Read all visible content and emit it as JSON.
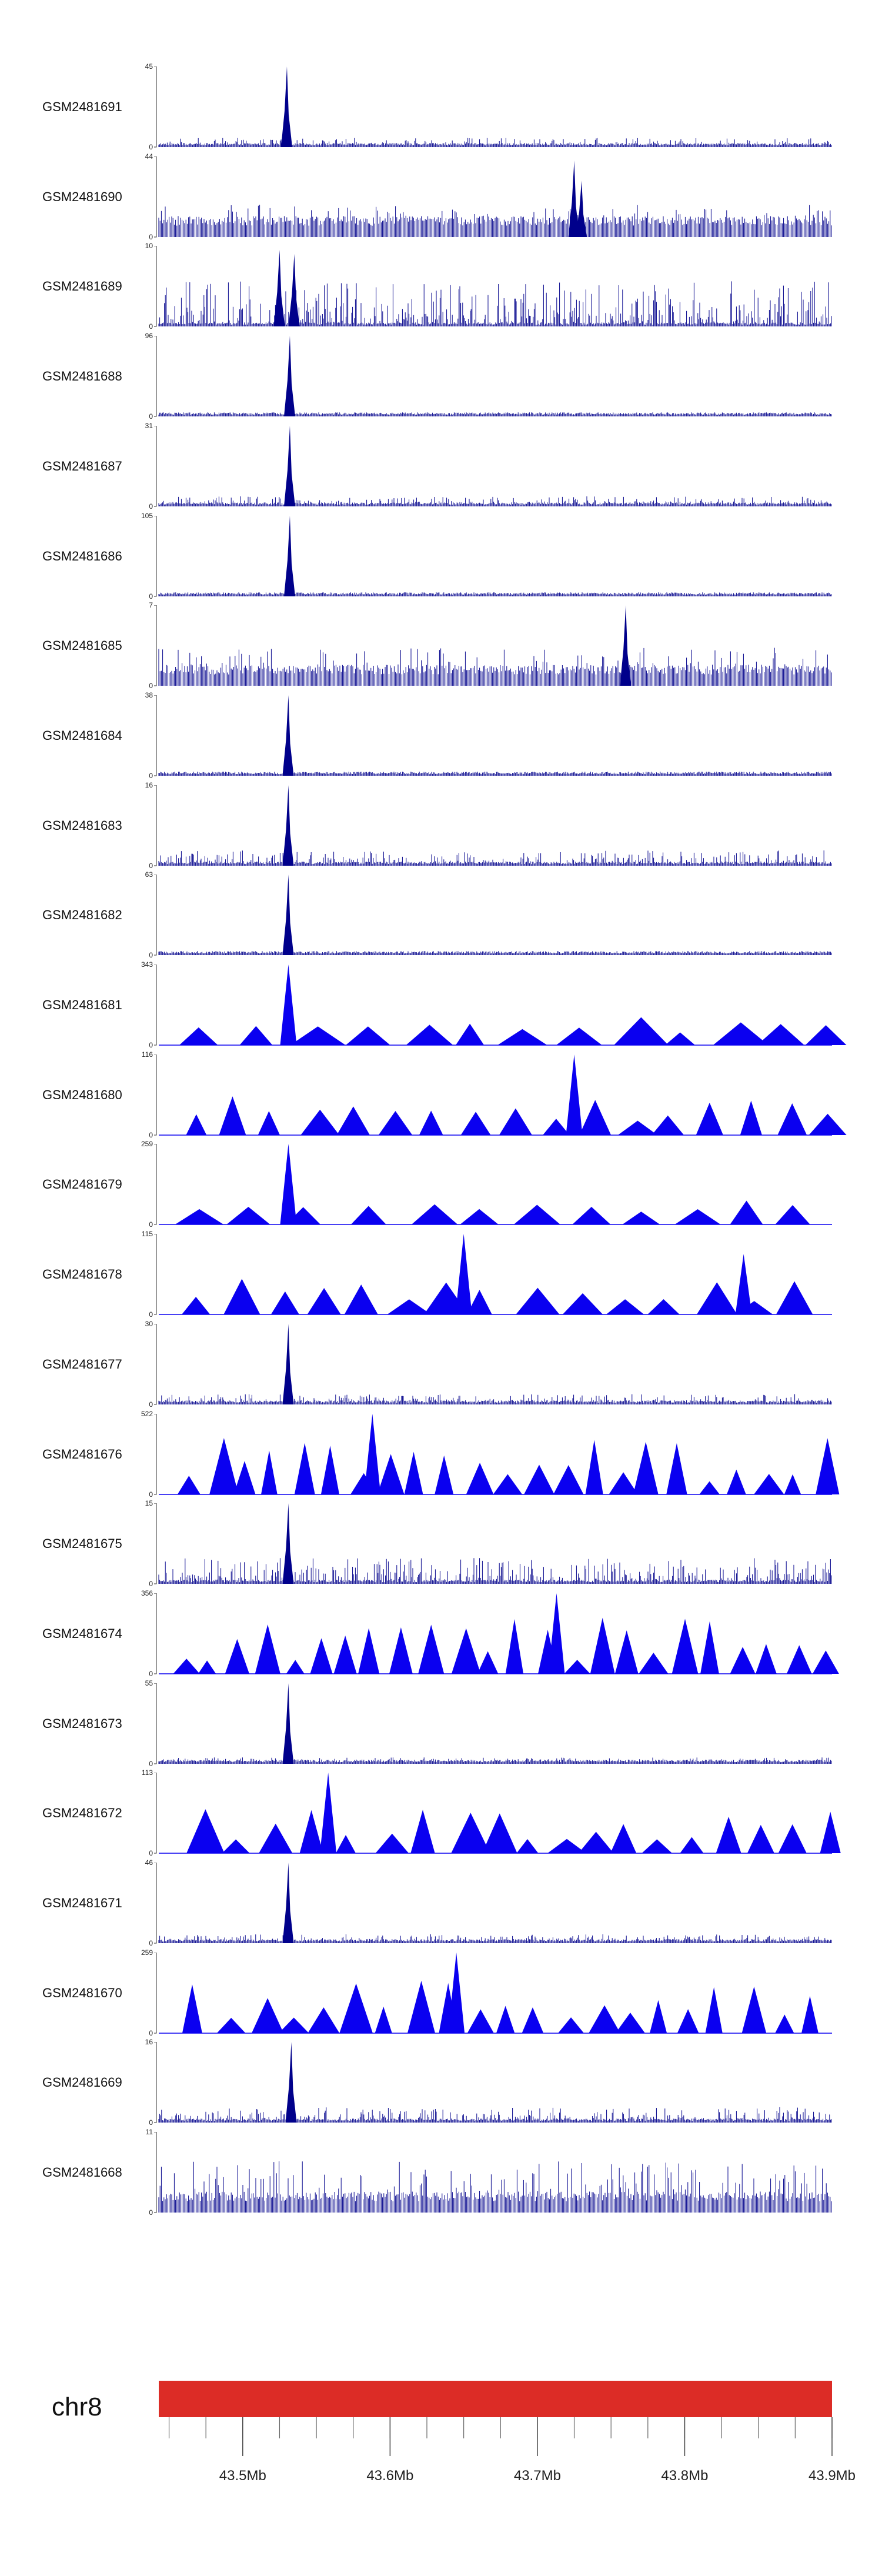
{
  "chart_data": {
    "type": "area",
    "title": "",
    "chromosome": "chr8",
    "xlim": [
      43.443,
      43.9
    ],
    "x_ticks": [
      43.5,
      43.6,
      43.7,
      43.8,
      43.9
    ],
    "x_tick_labels": [
      "43.5Mb",
      "43.6Mb",
      "43.7Mb",
      "43.8Mb",
      "43.9Mb"
    ],
    "series": [
      {
        "name": "GSM2481691",
        "max": 45,
        "style": "noise",
        "level": 0.07,
        "peaks": [
          [
            43.53,
            1.0
          ]
        ]
      },
      {
        "name": "GSM2481690",
        "max": 44,
        "style": "sparse",
        "level": 0.25,
        "peaks": [
          [
            43.725,
            0.95
          ],
          [
            43.73,
            0.7
          ]
        ]
      },
      {
        "name": "GSM2481689",
        "max": 10,
        "style": "noise",
        "level": 0.35,
        "peaks": [
          [
            43.525,
            0.95
          ],
          [
            43.535,
            0.9
          ]
        ]
      },
      {
        "name": "GSM2481688",
        "max": 96,
        "style": "peak",
        "level": 0.02,
        "peaks": [
          [
            43.532,
            1.0
          ]
        ]
      },
      {
        "name": "GSM2481687",
        "max": 31,
        "style": "peak",
        "level": 0.08,
        "peaks": [
          [
            43.532,
            1.0
          ]
        ]
      },
      {
        "name": "GSM2481686",
        "max": 105,
        "style": "peak",
        "level": 0.02,
        "peaks": [
          [
            43.532,
            1.0
          ]
        ]
      },
      {
        "name": "GSM2481685",
        "max": 7,
        "style": "sparse",
        "level": 0.3,
        "peaks": [
          [
            43.76,
            1.0
          ]
        ]
      },
      {
        "name": "GSM2481684",
        "max": 38,
        "style": "peak",
        "level": 0.02,
        "peaks": [
          [
            43.531,
            1.0
          ]
        ]
      },
      {
        "name": "GSM2481683",
        "max": 16,
        "style": "noise",
        "level": 0.12,
        "peaks": [
          [
            43.531,
            1.0
          ]
        ]
      },
      {
        "name": "GSM2481682",
        "max": 63,
        "style": "peak",
        "level": 0.02,
        "peaks": [
          [
            43.531,
            1.0
          ]
        ]
      },
      {
        "name": "GSM2481681",
        "max": 343,
        "style": "tri",
        "level": 0.2,
        "peaks": [
          [
            43.531,
            1.0
          ]
        ]
      },
      {
        "name": "GSM2481680",
        "max": 116,
        "style": "tri",
        "level": 0.35,
        "peaks": [
          [
            43.725,
            1.0
          ]
        ]
      },
      {
        "name": "GSM2481679",
        "max": 259,
        "style": "tri",
        "level": 0.15,
        "peaks": [
          [
            43.531,
            1.0
          ]
        ]
      },
      {
        "name": "GSM2481678",
        "max": 115,
        "style": "tri",
        "level": 0.3,
        "peaks": [
          [
            43.65,
            1.0
          ],
          [
            43.84,
            0.75
          ]
        ]
      },
      {
        "name": "GSM2481677",
        "max": 30,
        "style": "noise",
        "level": 0.08,
        "peaks": [
          [
            43.531,
            1.0
          ]
        ]
      },
      {
        "name": "GSM2481676",
        "max": 522,
        "style": "tri",
        "level": 0.55,
        "peaks": [
          [
            43.588,
            1.0
          ]
        ]
      },
      {
        "name": "GSM2481675",
        "max": 15,
        "style": "noise",
        "level": 0.2,
        "peaks": [
          [
            43.531,
            1.0
          ]
        ]
      },
      {
        "name": "GSM2481674",
        "max": 356,
        "style": "tri",
        "level": 0.55,
        "peaks": [
          [
            43.713,
            1.0
          ]
        ]
      },
      {
        "name": "GSM2481673",
        "max": 55,
        "style": "noise",
        "level": 0.05,
        "peaks": [
          [
            43.531,
            1.0
          ]
        ]
      },
      {
        "name": "GSM2481672",
        "max": 113,
        "style": "tri",
        "level": 0.4,
        "peaks": [
          [
            43.558,
            1.0
          ]
        ]
      },
      {
        "name": "GSM2481671",
        "max": 46,
        "style": "noise",
        "level": 0.07,
        "peaks": [
          [
            43.531,
            1.0
          ]
        ]
      },
      {
        "name": "GSM2481670",
        "max": 259,
        "style": "tri",
        "level": 0.5,
        "peaks": [
          [
            43.645,
            1.0
          ]
        ]
      },
      {
        "name": "GSM2481669",
        "max": 16,
        "style": "noise",
        "level": 0.12,
        "peaks": [
          [
            43.533,
            1.0
          ]
        ]
      },
      {
        "name": "GSM2481668",
        "max": 11,
        "style": "sparse",
        "level": 0.4,
        "peaks": []
      }
    ],
    "colors": {
      "signal": "#0a00f0",
      "signal_dark": "#00008b",
      "ideogram": "#dc2c26",
      "axis": "#333333"
    }
  }
}
